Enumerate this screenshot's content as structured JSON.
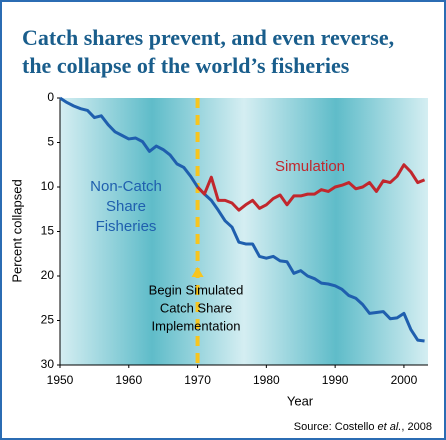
{
  "chart_data": {
    "type": "line",
    "title": [
      "Catch shares prevent, and even reverse,",
      "the collapse of the world’s fisheries"
    ],
    "x_label": "Year",
    "y_label": "Percent collapsed",
    "x": [
      1950,
      1951,
      1952,
      1953,
      1954,
      1955,
      1956,
      1957,
      1958,
      1959,
      1960,
      1961,
      1962,
      1963,
      1964,
      1965,
      1966,
      1967,
      1968,
      1969,
      1970,
      1971,
      1972,
      1973,
      1974,
      1975,
      1976,
      1977,
      1978,
      1979,
      1980,
      1981,
      1982,
      1983,
      1984,
      1985,
      1986,
      1987,
      1988,
      1989,
      1990,
      1991,
      1992,
      1993,
      1994,
      1995,
      1996,
      1997,
      1998,
      1999,
      2000,
      2001,
      2002,
      2003
    ],
    "series": [
      {
        "name": "Non-Catch Share Fisheries",
        "color": "#1f5fae",
        "values": [
          0,
          0.5,
          0.9,
          1.2,
          1.4,
          2.2,
          2.0,
          3.0,
          3.8,
          4.2,
          4.6,
          4.5,
          4.9,
          6.0,
          5.4,
          5.8,
          6.4,
          7.4,
          7.8,
          8.8,
          10.0,
          10.8,
          11.5,
          12.6,
          13.8,
          14.5,
          16.2,
          16.4,
          16.4,
          17.8,
          18.0,
          17.8,
          18.3,
          18.4,
          19.7,
          19.4,
          20.0,
          20.3,
          20.8,
          20.9,
          21.1,
          21.5,
          22.2,
          22.5,
          23.2,
          24.2,
          24.1,
          24.0,
          24.8,
          24.7,
          24.2,
          26.0,
          27.2,
          27.3
        ]
      },
      {
        "name": "Simulation",
        "color": "#c1272d",
        "values": [
          null,
          null,
          null,
          null,
          null,
          null,
          null,
          null,
          null,
          null,
          null,
          null,
          null,
          null,
          null,
          null,
          null,
          null,
          null,
          null,
          10.0,
          10.8,
          8.9,
          11.5,
          11.5,
          11.8,
          12.6,
          12.0,
          11.5,
          12.4,
          12.0,
          11.3,
          10.9,
          12.0,
          11.0,
          11.0,
          10.8,
          10.8,
          10.3,
          10.5,
          10.0,
          9.8,
          9.5,
          10.2,
          10.0,
          9.5,
          10.5,
          9.3,
          9.5,
          8.8,
          7.5,
          8.3,
          9.5,
          9.2
        ]
      }
    ],
    "series_labels": [
      [
        "Non-Catch",
        "Share",
        "Fisheries"
      ],
      [
        "Simulation"
      ]
    ],
    "annotation": {
      "x": 1970,
      "lines": [
        "Begin Simulated",
        "Catch Share",
        "Implementation"
      ]
    },
    "xlim": [
      1950,
      2003.5
    ],
    "xticks": [
      1950,
      1960,
      1970,
      1980,
      1990,
      2000
    ],
    "ylim": [
      0,
      30
    ],
    "yticks": [
      0,
      5,
      10,
      15,
      20,
      25,
      30
    ],
    "y_inverted": true,
    "source": [
      "Source: Costello ",
      "et al.",
      ", 2008"
    ]
  }
}
